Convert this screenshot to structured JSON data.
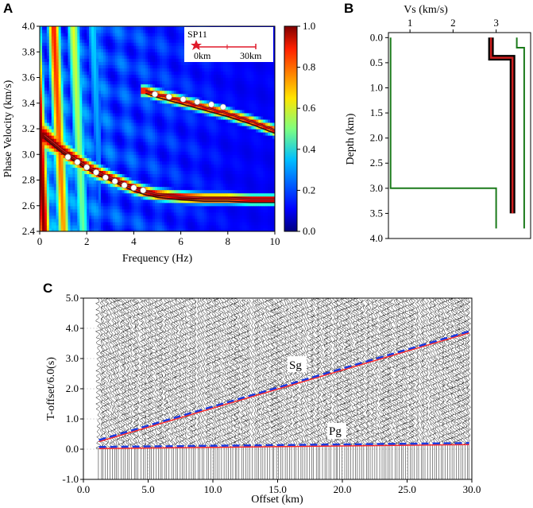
{
  "colors": {
    "axis": "#000000",
    "curve_dark": "#3a1010",
    "curve_red": "#cc1f1f",
    "model_green": "#1a7a1a",
    "star": "#e01a2a",
    "pick_blue": "#1a3adf",
    "pick_red": "#ff2a2a"
  },
  "chart_data": [
    {
      "panel": "A",
      "type": "heatmap",
      "xlabel": "Frequency (Hz)",
      "ylabel": "Phase Velocity (km/s)",
      "xlim": [
        0,
        10
      ],
      "ylim": [
        2.4,
        4.0
      ],
      "xticks": [
        "0",
        "2",
        "4",
        "6",
        "8",
        "10"
      ],
      "yticks": [
        "2.4",
        "2.6",
        "2.8",
        "3.0",
        "3.2",
        "3.4",
        "3.6",
        "3.8",
        "4.0"
      ],
      "colorbar": {
        "range": [
          0,
          1
        ],
        "ticks": [
          "0.0",
          "0.2",
          "0.4",
          "0.6",
          "0.8",
          "1.0"
        ]
      },
      "inset": {
        "station": "SP11",
        "scale_start": "0km",
        "scale_end": "30km"
      },
      "series": [
        {
          "name": "fundamental mode",
          "x": [
            0.2,
            0.6,
            1.0,
            1.5,
            2.0,
            2.5,
            3.0,
            3.5,
            4.0,
            4.5,
            5.0,
            6.0,
            7.0,
            8.0,
            9.0,
            10.0
          ],
          "y": [
            3.15,
            3.09,
            3.03,
            2.97,
            2.91,
            2.86,
            2.82,
            2.78,
            2.74,
            2.71,
            2.69,
            2.67,
            2.66,
            2.66,
            2.65,
            2.65
          ]
        },
        {
          "name": "first higher mode",
          "x": [
            4.5,
            5.0,
            6.0,
            7.0,
            8.0,
            9.0,
            10.0
          ],
          "y": [
            3.5,
            3.47,
            3.42,
            3.37,
            3.32,
            3.26,
            3.19
          ]
        }
      ],
      "picks": [
        {
          "x": [
            1.2,
            1.6,
            2.0,
            2.4,
            2.8,
            3.2,
            3.6,
            4.0,
            4.4
          ],
          "y": [
            2.98,
            2.94,
            2.9,
            2.86,
            2.82,
            2.79,
            2.76,
            2.74,
            2.72
          ]
        },
        {
          "x": [
            4.9,
            5.5,
            6.1,
            6.7,
            7.3,
            7.8
          ],
          "y": [
            3.47,
            3.45,
            3.43,
            3.41,
            3.39,
            3.37
          ]
        }
      ]
    },
    {
      "panel": "B",
      "type": "line",
      "xlabel": "Vs (km/s)",
      "ylabel": "Depth (km)",
      "xlim": [
        0.5,
        3.8
      ],
      "ylim": [
        4.0,
        -0.1
      ],
      "xticks": [
        "1",
        "2",
        "3"
      ],
      "yticks": [
        "0.0",
        "0.5",
        "1.0",
        "1.5",
        "2.0",
        "2.5",
        "3.0",
        "3.5",
        "4.0"
      ],
      "series": [
        {
          "name": "inverted models",
          "x": [
            2.88,
            2.88,
            3.38,
            3.38
          ],
          "y": [
            0.0,
            0.4,
            0.4,
            3.5
          ]
        },
        {
          "name": "lower bound",
          "x": [
            0.55,
            0.55,
            3.0,
            3.0
          ],
          "y": [
            0.0,
            3.0,
            3.0,
            3.8
          ]
        },
        {
          "name": "upper bound",
          "x": [
            3.48,
            3.48,
            3.65,
            3.65
          ],
          "y": [
            0.0,
            0.2,
            0.2,
            3.8
          ]
        }
      ]
    },
    {
      "panel": "C",
      "type": "scatter",
      "xlabel": "Offset (km)",
      "ylabel": "T-offset/6.0(s)",
      "xlim": [
        0,
        30
      ],
      "ylim": [
        -1.0,
        5.0
      ],
      "xticks": [
        "0.0",
        "5.0",
        "10.0",
        "15.0",
        "20.0",
        "25.0",
        "30.0"
      ],
      "yticks": [
        "-1.0",
        "0.0",
        "1.0",
        "2.0",
        "3.0",
        "4.0",
        "5.0"
      ],
      "phases": [
        {
          "label": "Sg",
          "x": [
            1.2,
            29.8
          ],
          "y": [
            0.25,
            3.85
          ]
        },
        {
          "label": "Pg",
          "x": [
            1.2,
            29.8
          ],
          "y": [
            0.02,
            0.15
          ]
        }
      ]
    }
  ]
}
